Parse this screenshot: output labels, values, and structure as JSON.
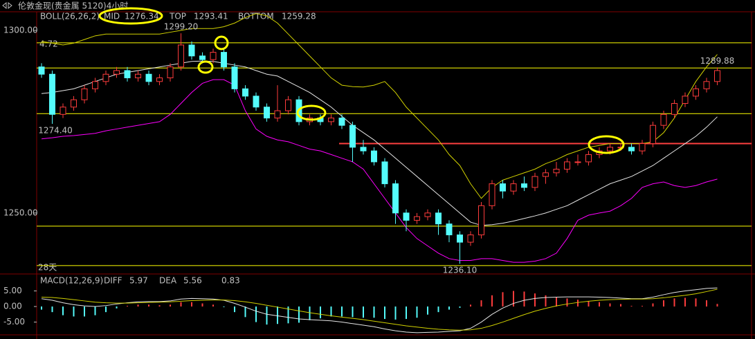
{
  "chart_data": [
    {
      "type": "candlestick",
      "title": "伦敦金现(贵金属 5120)4小时",
      "indicator": "BOLL(26,26,2)",
      "open": [
        1290,
        1288,
        1277,
        1279,
        1281,
        1284,
        1286,
        1288,
        1289,
        1287,
        1288,
        1286,
        1287,
        1290,
        1296,
        1293,
        1292,
        1294,
        1290,
        1284,
        1282,
        1279,
        1276,
        1278,
        1281,
        1275,
        1276,
        1275,
        1276,
        1274,
        1268,
        1267,
        1264,
        1258,
        1250,
        1248,
        1249,
        1250,
        1247,
        1244,
        1242,
        1244,
        1252,
        1258,
        1256,
        1258,
        1257,
        1260,
        1261,
        1262,
        1264,
        1264,
        1266,
        1267,
        1268,
        1268,
        1267,
        1269,
        1274,
        1277,
        1280,
        1282,
        1284,
        1286
      ],
      "high": [
        1291,
        1289,
        1280,
        1282,
        1285,
        1287,
        1289,
        1290,
        1290,
        1289,
        1289,
        1288,
        1291,
        1299.2,
        1297,
        1294,
        1295,
        1295,
        1291,
        1285,
        1283,
        1280,
        1285,
        1282,
        1282,
        1277,
        1277,
        1277,
        1277,
        1275,
        1270,
        1268,
        1265,
        1259,
        1251,
        1250,
        1251,
        1251,
        1248,
        1245,
        1245,
        1253,
        1259,
        1259,
        1259,
        1260,
        1261,
        1262,
        1264,
        1265,
        1266,
        1267,
        1268,
        1269,
        1269,
        1269,
        1270,
        1275,
        1278,
        1281,
        1283,
        1285,
        1287,
        1289.88
      ],
      "low": [
        1287,
        1274.4,
        1276,
        1278,
        1280,
        1283,
        1285,
        1287,
        1286,
        1286,
        1285,
        1285,
        1286,
        1289,
        1292,
        1291,
        1291,
        1289,
        1283,
        1281,
        1278,
        1275,
        1275,
        1277,
        1274,
        1274,
        1274,
        1274,
        1273,
        1264,
        1266,
        1263,
        1257,
        1247,
        1245,
        1247,
        1248,
        1244,
        1242,
        1236.1,
        1241,
        1243,
        1251,
        1254,
        1255,
        1256,
        1256,
        1258,
        1260,
        1261,
        1263,
        1263,
        1265,
        1266,
        1267,
        1266,
        1266,
        1268,
        1273,
        1276,
        1279,
        1281,
        1283,
        1285
      ],
      "close": [
        1288,
        1277,
        1279,
        1281,
        1284,
        1286,
        1288,
        1289,
        1287,
        1288,
        1286,
        1287,
        1290,
        1296,
        1293,
        1292,
        1294,
        1290,
        1284,
        1282,
        1279,
        1276,
        1278,
        1281,
        1275,
        1276,
        1275,
        1276,
        1274,
        1268,
        1267,
        1264,
        1258,
        1250,
        1248,
        1249,
        1250,
        1247,
        1244,
        1242,
        1244,
        1252,
        1258,
        1256,
        1258,
        1257,
        1260,
        1261,
        1262,
        1264,
        1264,
        1266,
        1267,
        1268,
        1268,
        1267,
        1269,
        1274,
        1277,
        1280,
        1282,
        1284,
        1286,
        1289
      ],
      "up_color": "#ff3c3c",
      "down_color": "#54fcfc",
      "series": [
        {
          "name": "MID",
          "color": "#e6e6e6",
          "values": [
            1282.7,
            1283,
            1283.5,
            1284,
            1285,
            1286,
            1287,
            1288,
            1288.5,
            1289,
            1289.5,
            1290,
            1290.5,
            1291,
            1291.5,
            1291.6,
            1291.5,
            1291,
            1290.5,
            1290,
            1289,
            1288,
            1287.5,
            1286,
            1284.5,
            1283,
            1281,
            1279,
            1276.5,
            1274,
            1272,
            1270,
            1267.5,
            1265,
            1262.5,
            1260,
            1257.5,
            1255,
            1252.5,
            1250,
            1247.5,
            1246.6,
            1246.8,
            1247.2,
            1247.8,
            1248.5,
            1249.2,
            1250,
            1251,
            1252,
            1253.5,
            1255,
            1256.5,
            1258,
            1259,
            1260,
            1261.5,
            1263,
            1265,
            1267,
            1269,
            1271,
            1273.5,
            1276.34
          ]
        },
        {
          "name": "TOP",
          "color": "#d2d200",
          "values": [
            1297,
            1296.5,
            1296,
            1296.5,
            1297.5,
            1298.5,
            1299,
            1299,
            1299,
            1299,
            1299,
            1299,
            1299.5,
            1300,
            1300.5,
            1300.5,
            1300.5,
            1301,
            1302,
            1303.5,
            1304.6,
            1304,
            1302,
            1299,
            1296,
            1293,
            1290,
            1287,
            1285,
            1284.6,
            1284.5,
            1285,
            1286,
            1283,
            1279,
            1276,
            1273,
            1270,
            1266,
            1263,
            1258,
            1254,
            1257,
            1259,
            1260,
            1261,
            1262,
            1263.5,
            1264.6,
            1266,
            1267,
            1268,
            1268.5,
            1269,
            1269,
            1269,
            1269,
            1269.5,
            1272,
            1276,
            1281,
            1286,
            1290,
            1293.41
          ]
        },
        {
          "name": "BOTTOM",
          "color": "#ff00ff",
          "values": [
            1270.3,
            1270.6,
            1271,
            1271.2,
            1271.5,
            1271.8,
            1272.5,
            1273,
            1273.5,
            1274,
            1274.5,
            1275,
            1277,
            1280,
            1283,
            1285.5,
            1286.5,
            1286.5,
            1285,
            1278,
            1273,
            1271,
            1270,
            1269.5,
            1268.5,
            1267.5,
            1267,
            1266,
            1265,
            1264,
            1262,
            1258,
            1254,
            1250,
            1246,
            1243,
            1241,
            1239,
            1237.5,
            1237,
            1237,
            1237.5,
            1237.5,
            1237,
            1236.5,
            1236.5,
            1236.8,
            1237.5,
            1239,
            1243,
            1248,
            1249.4,
            1250,
            1250.5,
            1252,
            1254,
            1257,
            1258,
            1258.5,
            1257.5,
            1257,
            1257.5,
            1258.5,
            1259.28
          ]
        }
      ],
      "ylim": [
        1233.3,
        1305.1
      ],
      "yticks": [
        {
          "value": 1300,
          "label": "1300.00"
        },
        {
          "value": 1250,
          "label": "1250.00"
        }
      ],
      "levels": [
        1296.6,
        1289.7,
        1277.2,
        1246.4,
        1235.6
      ],
      "level_color": "#ffff00",
      "resistance": 1269,
      "resistance_color": "#ff4040",
      "price_labels": [
        {
          "value": 1299.2,
          "label": "1299.20"
        },
        {
          "value": 1274.4,
          "label": "1274.40"
        },
        {
          "value": 1236.1,
          "label": "1236.10"
        },
        {
          "value": 1289.88,
          "label": "1289.88"
        }
      ],
      "left_note": "4.72",
      "period_note": "28天"
    },
    {
      "type": "macd",
      "title": "MACD(12,26,9)",
      "series": [
        {
          "name": "DIFF",
          "color": "#e6e6e6",
          "values": [
            2.5,
            2,
            1.2,
            0.6,
            0.2,
            0,
            0.3,
            0.8,
            1.2,
            1.5,
            1.6,
            1.6,
            1.8,
            2.4,
            2.6,
            2.5,
            2.4,
            2,
            1,
            -0.2,
            -1.5,
            -2.5,
            -3,
            -3.5,
            -4,
            -4.2,
            -4.4,
            -4.6,
            -5,
            -5.5,
            -6,
            -6.5,
            -7.2,
            -7.8,
            -8.2,
            -8.4,
            -8.3,
            -8.2,
            -8,
            -7.8,
            -7,
            -5,
            -2.5,
            -0.5,
            1,
            2,
            2.6,
            2.9,
            3,
            3.1,
            3.1,
            3.1,
            3,
            2.9,
            2.7,
            2.5,
            2.5,
            3,
            3.8,
            4.5,
            5,
            5.4,
            5.8,
            5.97
          ]
        },
        {
          "name": "DEA",
          "color": "#d2d200",
          "values": [
            3,
            2.9,
            2.6,
            2.2,
            1.8,
            1.4,
            1.2,
            1.1,
            1.1,
            1.2,
            1.3,
            1.4,
            1.5,
            1.7,
            1.9,
            2,
            2.1,
            2.1,
            1.9,
            1.5,
            1,
            0.4,
            -0.2,
            -0.8,
            -1.4,
            -2,
            -2.5,
            -3,
            -3.4,
            -3.8,
            -4.2,
            -4.7,
            -5.2,
            -5.7,
            -6.2,
            -6.6,
            -7,
            -7.3,
            -7.5,
            -7.6,
            -7.5,
            -7,
            -6.1,
            -5,
            -3.8,
            -2.6,
            -1.5,
            -0.6,
            0.2,
            0.8,
            1.3,
            1.7,
            2,
            2.2,
            2.3,
            2.4,
            2.4,
            2.5,
            2.8,
            3.2,
            3.6,
            4.1,
            4.8,
            5.56
          ]
        }
      ],
      "histogram": [
        -1,
        -1.8,
        -2.8,
        -3.2,
        -3.2,
        -2.8,
        -1.8,
        -0.6,
        0.2,
        0.6,
        0.6,
        0.4,
        0.6,
        1.4,
        1.4,
        1,
        0.6,
        -0.2,
        -1.8,
        -3.4,
        -5,
        -5.8,
        -5.6,
        -5.4,
        -5.2,
        -4.4,
        -3.8,
        -3.2,
        -3.2,
        -3.4,
        -3.6,
        -3.6,
        -4,
        -4.2,
        -4,
        -3.6,
        -2.6,
        -1.8,
        -1,
        -0.4,
        0.6,
        2,
        3.6,
        4.6,
        5,
        4.8,
        4.2,
        3.6,
        3,
        2.6,
        2.2,
        1.8,
        1.4,
        1,
        0.8,
        0.2,
        0.2,
        1,
        2,
        2.6,
        2.8,
        2.6,
        2,
        0.83
      ],
      "ylim": [
        -9.1,
        10.45
      ],
      "yticks": [
        {
          "value": 5,
          "label": "5.00"
        },
        {
          "value": 0,
          "label": "0.00"
        },
        {
          "value": -5,
          "label": "-5.00"
        }
      ]
    }
  ]
}
